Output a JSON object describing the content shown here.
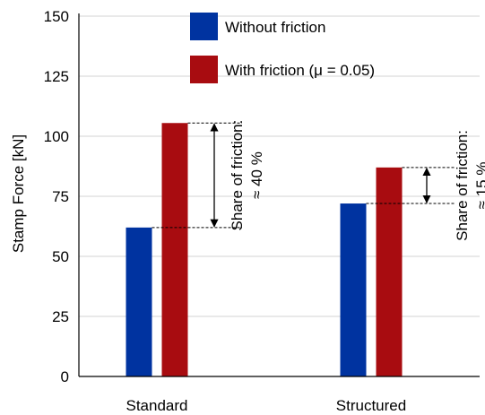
{
  "chart_data": {
    "type": "bar",
    "categories": [
      "Standard",
      "Structured"
    ],
    "series": [
      {
        "name": "Without friction",
        "color": "#0033a0",
        "values": [
          62,
          72
        ]
      },
      {
        "name": "With friction (μ = 0.05)",
        "color": "#a80c10",
        "values": [
          105.5,
          87
        ]
      }
    ],
    "ylabel": "Stamp Force [kN]",
    "xlabel": "",
    "ylim": [
      0,
      150
    ],
    "yticks": [
      0,
      25,
      50,
      75,
      100,
      125,
      150
    ],
    "grid": true,
    "legend_position": "top-center",
    "annotations": [
      {
        "category": "Standard",
        "line1": "Share of friction:",
        "line2": "≈ 40 %"
      },
      {
        "category": "Structured",
        "line1": "Share of friction:",
        "line2": "≈ 15 %"
      }
    ]
  }
}
